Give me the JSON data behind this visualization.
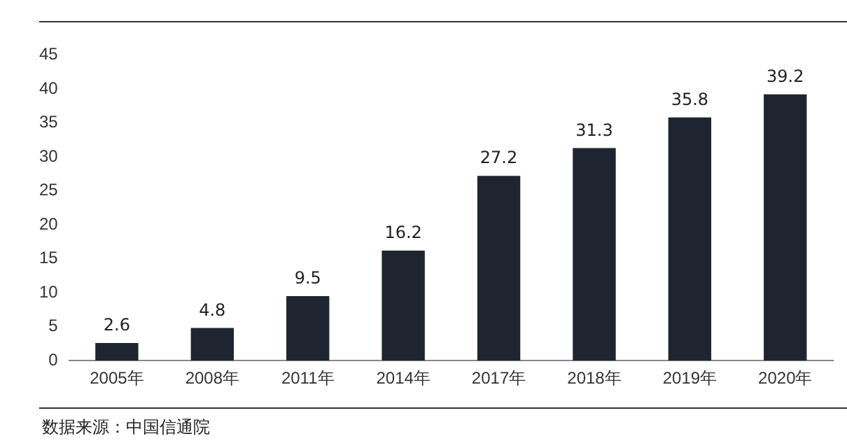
{
  "chart_data": {
    "type": "bar",
    "categories": [
      "2005年",
      "2008年",
      "2011年",
      "2014年",
      "2017年",
      "2018年",
      "2019年",
      "2020年"
    ],
    "values": [
      2.6,
      4.8,
      9.5,
      16.2,
      27.2,
      31.3,
      35.8,
      39.2
    ],
    "color": "#1f2530",
    "ylim": [
      0,
      45
    ],
    "yticks": [
      0,
      5,
      10,
      15,
      20,
      25,
      30,
      35,
      40,
      45
    ],
    "grid": false,
    "legend": false,
    "data_labels": true,
    "annotations": [
      "数据来源：中国信通院"
    ]
  }
}
